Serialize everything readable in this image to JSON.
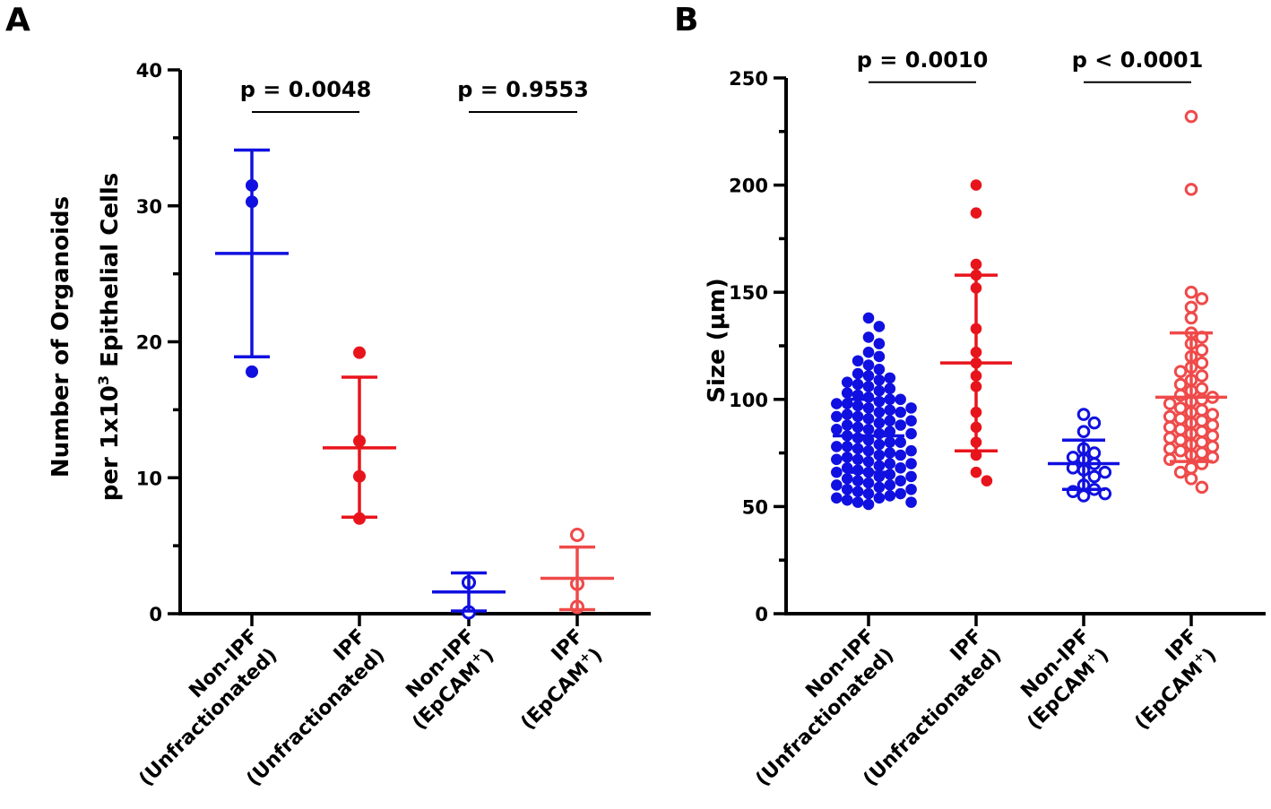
{
  "colors": {
    "blue": "#1010e0",
    "red": "#e8141c",
    "light_red": "#ef4a4a",
    "axis": "#000000"
  },
  "chart_data": [
    {
      "panel": "A",
      "type": "scatter",
      "ylabel": "Number of Organoids",
      "ylabel2_pre": "per 1x10",
      "ylabel2_sup": "3",
      "ylabel2_post": " Epithelial Cells",
      "ylim": [
        0,
        40
      ],
      "yticks": [
        0,
        10,
        20,
        30,
        40
      ],
      "categories": [
        {
          "line1": "Non-IPF",
          "line2": "(Unfractionated)",
          "sup": ""
        },
        {
          "line1": "IPF",
          "line2": "(Unfractionated)",
          "sup": ""
        },
        {
          "line1": "Non-IPF",
          "line2": "(EpCAM",
          "sup": "+",
          "close": ")"
        },
        {
          "line1": "IPF",
          "line2": "(EpCAM",
          "sup": "+",
          "close": ")"
        }
      ],
      "groups": [
        {
          "color": "blue",
          "filled": true,
          "mean": 26.5,
          "sd_low": 18.9,
          "sd_high": 34.1,
          "points": [
            31.5,
            30.3,
            17.8
          ]
        },
        {
          "color": "red",
          "filled": true,
          "mean": 12.2,
          "sd_low": 7.1,
          "sd_high": 17.4,
          "points": [
            19.2,
            12.7,
            10.1,
            7.0
          ]
        },
        {
          "color": "blue",
          "filled": false,
          "mean": 1.6,
          "sd_low": 0.2,
          "sd_high": 3.0,
          "points": [
            2.3,
            2.3,
            0.1
          ]
        },
        {
          "color": "light_red",
          "filled": false,
          "mean": 2.6,
          "sd_low": 0.3,
          "sd_high": 4.9,
          "points": [
            5.8,
            2.2,
            2.2,
            0.5
          ]
        }
      ],
      "comparisons": [
        {
          "from": 0,
          "to": 1,
          "label": "p = 0.0048",
          "y": 36.9
        },
        {
          "from": 2,
          "to": 3,
          "label": "p = 0.9553",
          "y": 36.9
        }
      ]
    },
    {
      "panel": "B",
      "type": "scatter",
      "ylabel": "Size (µm)",
      "ylim": [
        0,
        250
      ],
      "yticks": [
        0,
        50,
        100,
        150,
        200,
        250
      ],
      "categories": [
        {
          "line1": "Non-IPF",
          "line2": "(Unfractionated)",
          "sup": ""
        },
        {
          "line1": "IPF",
          "line2": "(Unfractionated)",
          "sup": ""
        },
        {
          "line1": "Non-IPF",
          "line2": "(EpCAM",
          "sup": "+",
          "close": ")"
        },
        {
          "line1": "IPF",
          "line2": "(EpCAM",
          "sup": "+",
          "close": ")"
        }
      ],
      "groups": [
        {
          "color": "blue",
          "filled": true,
          "mean": 83,
          "sd_low": 66,
          "sd_high": 100,
          "points": [
            138,
            134,
            129,
            126,
            122,
            120,
            118,
            116,
            114,
            112,
            111,
            110,
            109,
            108,
            107,
            106,
            105,
            104,
            103,
            102,
            101,
            100,
            99,
            98,
            97,
            96,
            95,
            94,
            93,
            92,
            91,
            90,
            89,
            88,
            87,
            86,
            85,
            84,
            83,
            82,
            81,
            80,
            79,
            78,
            77,
            76,
            75,
            74,
            73,
            72,
            71,
            70,
            69,
            68,
            67,
            66,
            65,
            64,
            63,
            62,
            61,
            60,
            59,
            58,
            57,
            56,
            55,
            54,
            53,
            52,
            51,
            90,
            88,
            86,
            84,
            80,
            78,
            76,
            74,
            72,
            70,
            68,
            66,
            64,
            62,
            60,
            58,
            56,
            54,
            52,
            100,
            98,
            96,
            94,
            92
          ]
        },
        {
          "color": "red",
          "filled": true,
          "mean": 117,
          "sd_low": 76,
          "sd_high": 158,
          "points": [
            200,
            187,
            163,
            158,
            152,
            133,
            122,
            117,
            111,
            106,
            94,
            87,
            80,
            74,
            66,
            62
          ]
        },
        {
          "color": "blue",
          "filled": false,
          "mean": 70,
          "sd_low": 58,
          "sd_high": 81,
          "points": [
            93,
            89,
            85,
            77,
            75,
            73,
            72,
            70,
            68,
            67,
            66,
            64,
            60,
            58,
            57,
            56,
            55
          ]
        },
        {
          "color": "light_red",
          "filled": false,
          "mean": 101,
          "sd_low": 71,
          "sd_high": 131,
          "points": [
            232,
            198,
            150,
            147,
            143,
            138,
            131,
            129,
            126,
            123,
            120,
            117,
            115,
            113,
            111,
            109,
            107,
            105,
            104,
            102,
            101,
            100,
            99,
            98,
            96,
            95,
            94,
            93,
            92,
            91,
            90,
            89,
            88,
            87,
            86,
            85,
            84,
            83,
            82,
            81,
            80,
            79,
            78,
            77,
            76,
            75,
            74,
            73,
            72,
            70,
            68,
            66,
            63,
            59
          ]
        }
      ],
      "comparisons": [
        {
          "from": 0,
          "to": 1,
          "label": "p = 0.0010",
          "y": 248
        },
        {
          "from": 2,
          "to": 3,
          "label": "p < 0.0001",
          "y": 248
        }
      ]
    }
  ]
}
